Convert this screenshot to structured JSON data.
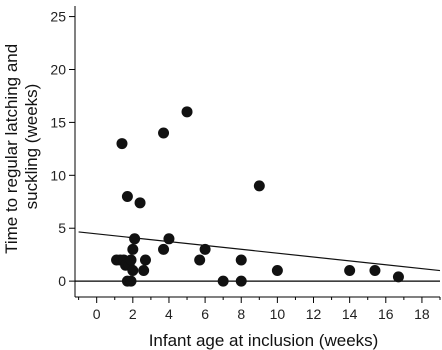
{
  "chart_data": {
    "type": "scatter",
    "title": "",
    "xlabel": "Infant age at inclusion (weeks)",
    "ylabel_lines": [
      "Time to regular latching and",
      "suckling (weeks)"
    ],
    "xlim": [
      -1.2,
      19
    ],
    "ylim": [
      -1.5,
      26
    ],
    "xticks": [
      0,
      2,
      4,
      6,
      8,
      10,
      12,
      14,
      16,
      18
    ],
    "yticks": [
      0,
      5,
      10,
      15,
      20,
      25
    ],
    "grid": false,
    "legend": "none",
    "points": [
      {
        "x": 1.1,
        "y": 2
      },
      {
        "x": 1.3,
        "y": 2
      },
      {
        "x": 1.4,
        "y": 13
      },
      {
        "x": 1.5,
        "y": 2
      },
      {
        "x": 1.6,
        "y": 1.5
      },
      {
        "x": 1.7,
        "y": 8
      },
      {
        "x": 1.7,
        "y": 0
      },
      {
        "x": 1.8,
        "y": 1.5
      },
      {
        "x": 1.9,
        "y": 0
      },
      {
        "x": 1.9,
        "y": 2
      },
      {
        "x": 2.0,
        "y": 1
      },
      {
        "x": 2.0,
        "y": 3
      },
      {
        "x": 2.1,
        "y": 4
      },
      {
        "x": 2.4,
        "y": 7.4
      },
      {
        "x": 2.6,
        "y": 1
      },
      {
        "x": 2.7,
        "y": 2
      },
      {
        "x": 3.7,
        "y": 14
      },
      {
        "x": 3.7,
        "y": 3
      },
      {
        "x": 4.0,
        "y": 4
      },
      {
        "x": 5.0,
        "y": 16
      },
      {
        "x": 5.7,
        "y": 2
      },
      {
        "x": 6.0,
        "y": 3
      },
      {
        "x": 7.0,
        "y": 0
      },
      {
        "x": 8.0,
        "y": 0
      },
      {
        "x": 8.0,
        "y": 2
      },
      {
        "x": 9.0,
        "y": 9
      },
      {
        "x": 10.0,
        "y": 1
      },
      {
        "x": 14.0,
        "y": 1
      },
      {
        "x": 15.4,
        "y": 1
      },
      {
        "x": 16.7,
        "y": 0.4
      }
    ],
    "trendline": {
      "x": [
        -1.0,
        19.0
      ],
      "y": [
        4.65,
        1.0
      ]
    },
    "reference_line_y": 0,
    "colors": {
      "points": "#111111",
      "axes": "#000000"
    }
  }
}
